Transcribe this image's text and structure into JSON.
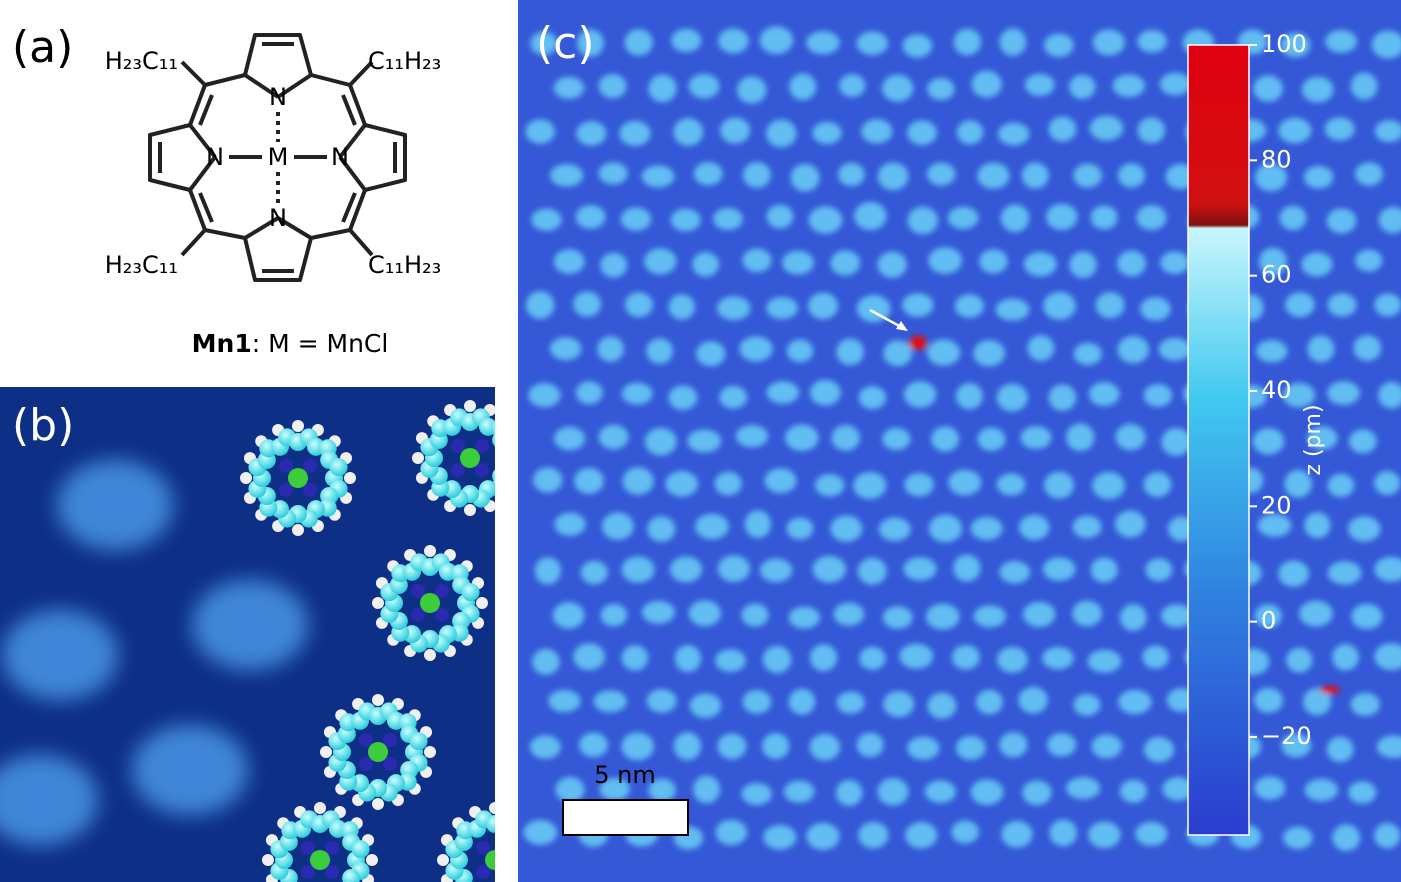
{
  "panel_a": {
    "label": "(a)",
    "substituents": [
      "H₂₃C₁₁",
      "C₁₁H₂₃",
      "H₂₃C₁₁",
      "C₁₁H₂₃"
    ],
    "atoms": [
      "N",
      "N",
      "M",
      "N",
      "N"
    ],
    "caption_bold": "Mn1",
    "caption": ": M = MnCl"
  },
  "panel_b": {
    "label": "(b)"
  },
  "panel_c": {
    "label": "(c)",
    "scale_bar": "5 nm",
    "colorbar": {
      "label": "z (pm)",
      "lim": [
        -37,
        100
      ],
      "ticks": [
        100,
        80,
        60,
        40,
        20,
        0,
        {
          "value": -20,
          "label": "−20"
        }
      ]
    }
  }
}
